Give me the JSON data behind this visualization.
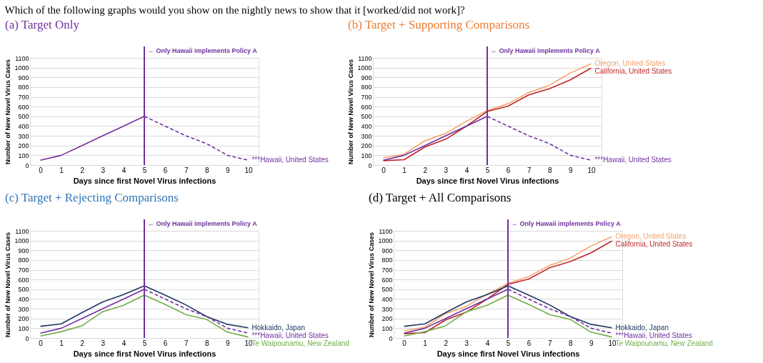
{
  "chart_data": [
    {
      "type": "line",
      "title": "(a) Target Only",
      "annotations": [
        "Which of the following graphs would you show on the nightly news to show that it [worked/did not work]?"
      ],
      "xlabel": "Days since first Novel Virus infections",
      "ylabel": "Number of New Novel Virus Cases",
      "categories": [
        "0",
        "1",
        "2",
        "3",
        "4",
        "5",
        "6",
        "7",
        "8",
        "9",
        "10"
      ],
      "ylim": [
        0,
        1100
      ],
      "yticks": [
        0,
        100,
        200,
        300,
        400,
        500,
        600,
        700,
        800,
        900,
        1000,
        1100
      ],
      "grid": "y",
      "legend": false,
      "marker": "none",
      "ref_lines": [
        {
          "axis": "x",
          "value": "5",
          "label": "← Only Hawaii implements Policy A",
          "color": "#7030a0"
        }
      ],
      "series": [
        {
          "color": "#7030a0",
          "line_style": "solid",
          "values": [
            50,
            100,
            200,
            300,
            400,
            500,
            null,
            null,
            null,
            null,
            null
          ]
        },
        {
          "name": "***Hawaii, United States",
          "color": "#7030a0",
          "line_style": "dashed",
          "values": [
            null,
            null,
            null,
            null,
            null,
            500,
            400,
            300,
            220,
            100,
            50
          ]
        }
      ]
    },
    {
      "type": "line",
      "title": "(b) Target + Supporting Comparisons",
      "xlabel": "Days since first Novel Virus infections",
      "ylabel": "Number of New Novel Virus Cases",
      "categories": [
        "0",
        "1",
        "2",
        "3",
        "4",
        "5",
        "6",
        "7",
        "8",
        "9",
        "10"
      ],
      "ylim": [
        0,
        1100
      ],
      "yticks": [
        0,
        100,
        200,
        300,
        400,
        500,
        600,
        700,
        800,
        900,
        1000,
        1100
      ],
      "grid": "y",
      "legend": false,
      "marker": "none",
      "ref_lines": [
        {
          "axis": "x",
          "value": "5",
          "label": "← Only Hawaii implements Policy A",
          "color": "#7030a0"
        }
      ],
      "series": [
        {
          "name": "Oregon, United States",
          "color": "#f4a26a",
          "line_style": "solid",
          "values": [
            75,
            110,
            250,
            325,
            450,
            560,
            630,
            745,
            820,
            945,
            1040
          ]
        },
        {
          "name": "California, United States",
          "color": "#c0262a",
          "line_style": "solid",
          "values": [
            45,
            55,
            185,
            265,
            400,
            550,
            605,
            720,
            785,
            875,
            995
          ]
        },
        {
          "color": "#7030a0",
          "line_style": "solid",
          "values": [
            50,
            100,
            200,
            300,
            400,
            500,
            null,
            null,
            null,
            null,
            null
          ]
        },
        {
          "name": "***Hawaii, United States",
          "color": "#7030a0",
          "line_style": "dashed",
          "values": [
            null,
            null,
            null,
            null,
            null,
            500,
            400,
            300,
            220,
            100,
            50
          ]
        }
      ]
    },
    {
      "type": "line",
      "title": "(c) Target + Rejecting Comparisons",
      "xlabel": "Days since first Novel Virus infections",
      "ylabel": "Number of New Novel Virus Cases",
      "categories": [
        "0",
        "1",
        "2",
        "3",
        "4",
        "5",
        "6",
        "7",
        "8",
        "9",
        "10"
      ],
      "ylim": [
        0,
        1100
      ],
      "yticks": [
        0,
        100,
        200,
        300,
        400,
        500,
        600,
        700,
        800,
        900,
        1000,
        1100
      ],
      "grid": "y",
      "legend": false,
      "marker": "none",
      "ref_lines": [
        {
          "axis": "x",
          "value": "5",
          "label": "← Only Hawaii implements Policy A",
          "color": "#7030a0"
        }
      ],
      "series": [
        {
          "name": "Hokkaido, Japan",
          "color": "#203864",
          "line_style": "solid",
          "values": [
            120,
            145,
            260,
            370,
            445,
            535,
            440,
            340,
            220,
            140,
            105
          ]
        },
        {
          "color": "#7030a0",
          "line_style": "solid",
          "values": [
            50,
            100,
            200,
            300,
            400,
            500,
            null,
            null,
            null,
            null,
            null
          ]
        },
        {
          "name": "***Hawaii, United States",
          "color": "#7030a0",
          "line_style": "dashed",
          "values": [
            null,
            null,
            null,
            null,
            null,
            500,
            400,
            300,
            220,
            100,
            50
          ]
        },
        {
          "name": "Te Waipounamu, New Zealand",
          "color": "#70ad47",
          "line_style": "solid",
          "values": [
            20,
            65,
            125,
            270,
            335,
            440,
            345,
            240,
            190,
            60,
            10
          ]
        }
      ]
    },
    {
      "type": "line",
      "title": "(d) Target + All Comparisons",
      "xlabel": "Days since first Novel Virus infections",
      "ylabel": "Number of New Novel Virus Cases",
      "categories": [
        "0",
        "1",
        "2",
        "3",
        "4",
        "5",
        "6",
        "7",
        "8",
        "9",
        "10"
      ],
      "ylim": [
        0,
        1100
      ],
      "yticks": [
        0,
        100,
        200,
        300,
        400,
        500,
        600,
        700,
        800,
        900,
        1000,
        1100
      ],
      "grid": "y",
      "legend": false,
      "marker": "none",
      "ref_lines": [
        {
          "axis": "x",
          "value": "5",
          "label": "← Only Hawaii implements Policy A",
          "color": "#7030a0"
        }
      ],
      "series": [
        {
          "name": "Oregon, United States",
          "color": "#f4a26a",
          "line_style": "solid",
          "values": [
            75,
            110,
            250,
            325,
            450,
            560,
            630,
            745,
            820,
            945,
            1040
          ]
        },
        {
          "name": "California, United States",
          "color": "#c0262a",
          "line_style": "solid",
          "values": [
            45,
            55,
            185,
            265,
            400,
            550,
            605,
            720,
            785,
            875,
            995
          ]
        },
        {
          "name": "Hokkaido, Japan",
          "color": "#203864",
          "line_style": "solid",
          "values": [
            120,
            145,
            260,
            370,
            445,
            535,
            440,
            340,
            220,
            140,
            105
          ]
        },
        {
          "color": "#7030a0",
          "line_style": "solid",
          "values": [
            50,
            100,
            200,
            300,
            400,
            500,
            null,
            null,
            null,
            null,
            null
          ]
        },
        {
          "name": "***Hawaii, United States",
          "color": "#7030a0",
          "line_style": "dashed",
          "values": [
            null,
            null,
            null,
            null,
            null,
            500,
            400,
            300,
            220,
            100,
            50
          ]
        },
        {
          "name": "Te Waipounamu, New Zealand",
          "color": "#70ad47",
          "line_style": "solid",
          "values": [
            20,
            65,
            125,
            270,
            335,
            440,
            345,
            240,
            190,
            60,
            10
          ]
        }
      ]
    }
  ]
}
